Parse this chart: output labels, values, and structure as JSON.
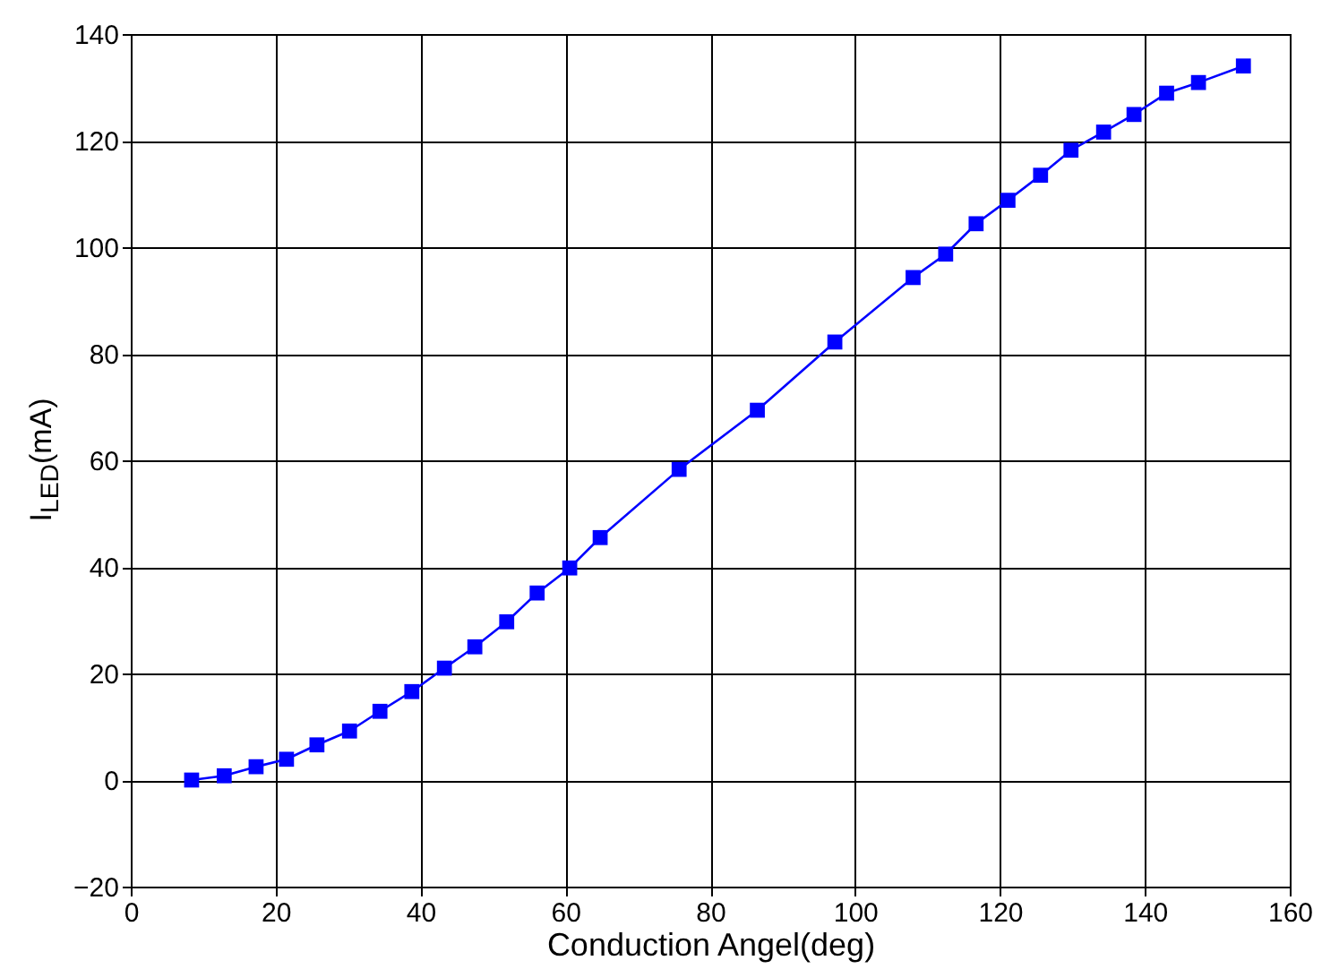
{
  "chart_data": {
    "type": "line",
    "xlabel": "Conduction Angel(deg)",
    "ylabel": "I$_{LED}$(mA)",
    "x": [
      8.4,
      12.9,
      17.3,
      21.5,
      25.7,
      30.2,
      34.4,
      38.8,
      43.3,
      47.5,
      51.9,
      56.1,
      60.6,
      64.8,
      75.7,
      86.5,
      97.2,
      108,
      112.5,
      116.7,
      121.1,
      125.6,
      129.8,
      134.3,
      138.5,
      143,
      147.4,
      153.6
    ],
    "series": [
      {
        "color": "#0000ff",
        "values": [
          0,
          0.8,
          2.5,
          3.9,
          6.6,
          9.2,
          12.9,
          16.6,
          21,
          25,
          29.7,
          35.1,
          39.8,
          45.5,
          58.3,
          69.4,
          82.2,
          94.3,
          98.7,
          104.4,
          108.8,
          113.5,
          118.2,
          121.6,
          124.9,
          128.9,
          130.9,
          134
        ]
      }
    ],
    "xlim": [
      0,
      160
    ],
    "xticks": [
      0,
      20,
      40,
      60,
      80,
      100,
      120,
      140,
      160
    ],
    "ylim": [
      -20,
      140
    ],
    "yticks": [
      -20,
      0,
      20,
      40,
      60,
      80,
      100,
      120,
      140
    ],
    "grid": true,
    "marker": "square",
    "line_style": "solid"
  }
}
